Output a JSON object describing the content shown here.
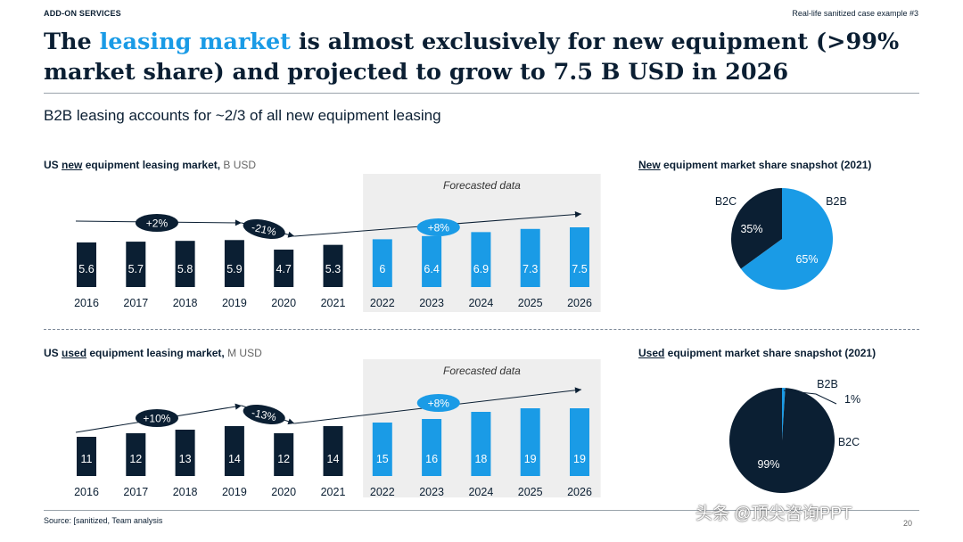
{
  "header": {
    "left_label": "ADD-ON SERVICES",
    "right_label": "Real-life sanitized case example #3",
    "title_pre": "The ",
    "title_highlight": "leasing market",
    "title_post": " is almost exclusively for new equipment (>99% market share) and projected to grow to 7.5 B USD in 2026",
    "subtitle": "B2B leasing accounts for ~2/3 of all new equipment leasing"
  },
  "footer": {
    "source": "Source: [sanitized, Team analysis",
    "watermark": "头条 @顶尖咨询PPT",
    "page_number": "20"
  },
  "colors": {
    "dark": "#0b1f33",
    "accent": "#1a9be6",
    "forecast_bg": "#eeeeee"
  },
  "chart_data": [
    {
      "type": "bar",
      "title_underlined": "new",
      "title_pre": "US ",
      "title_post": " equipment leasing market,",
      "unit": " B USD",
      "forecast_label": "Forecasted data",
      "categories": [
        "2016",
        "2017",
        "2018",
        "2019",
        "2020",
        "2021",
        "2022",
        "2023",
        "2024",
        "2025",
        "2026"
      ],
      "values": [
        5.6,
        5.7,
        5.8,
        5.9,
        4.7,
        5.3,
        6,
        6.4,
        6.9,
        7.3,
        7.5
      ],
      "labels": [
        "5.6",
        "5.7",
        "5.8",
        "5.9",
        "4.7",
        "5.3",
        "6",
        "6.4",
        "6.9",
        "7.3",
        "7.5"
      ],
      "forecast_start_index": 6,
      "growth_annotations": [
        "+2%",
        "-21%",
        "+8%"
      ]
    },
    {
      "type": "bar",
      "title_underlined": "used",
      "title_pre": "US ",
      "title_post": " equipment leasing market,",
      "unit": " M USD",
      "forecast_label": "Forecasted data",
      "categories": [
        "2016",
        "2017",
        "2018",
        "2019",
        "2020",
        "2021",
        "2022",
        "2023",
        "2024",
        "2025",
        "2026"
      ],
      "values": [
        11,
        12,
        13,
        14,
        12,
        14,
        15,
        16,
        18,
        19,
        19
      ],
      "labels": [
        "11",
        "12",
        "13",
        "14",
        "12",
        "14",
        "15",
        "16",
        "18",
        "19",
        "19"
      ],
      "forecast_start_index": 6,
      "growth_annotations": [
        "+10%",
        "-13%",
        "+8%"
      ]
    },
    {
      "type": "pie",
      "title_underlined": "New",
      "title_post": " equipment market share snapshot (2021)",
      "slices": [
        {
          "name": "B2B",
          "value": 65,
          "label": "65%",
          "color": "#1a9be6"
        },
        {
          "name": "B2C",
          "value": 35,
          "label": "35%",
          "color": "#0b1f33"
        }
      ]
    },
    {
      "type": "pie",
      "title_underlined": "Used",
      "title_post": " equipment market share snapshot (2021)",
      "slices": [
        {
          "name": "B2B",
          "value": 1,
          "label": "1%",
          "color": "#1a9be6"
        },
        {
          "name": "B2C",
          "value": 99,
          "label": "99%",
          "color": "#0b1f33"
        }
      ]
    }
  ]
}
